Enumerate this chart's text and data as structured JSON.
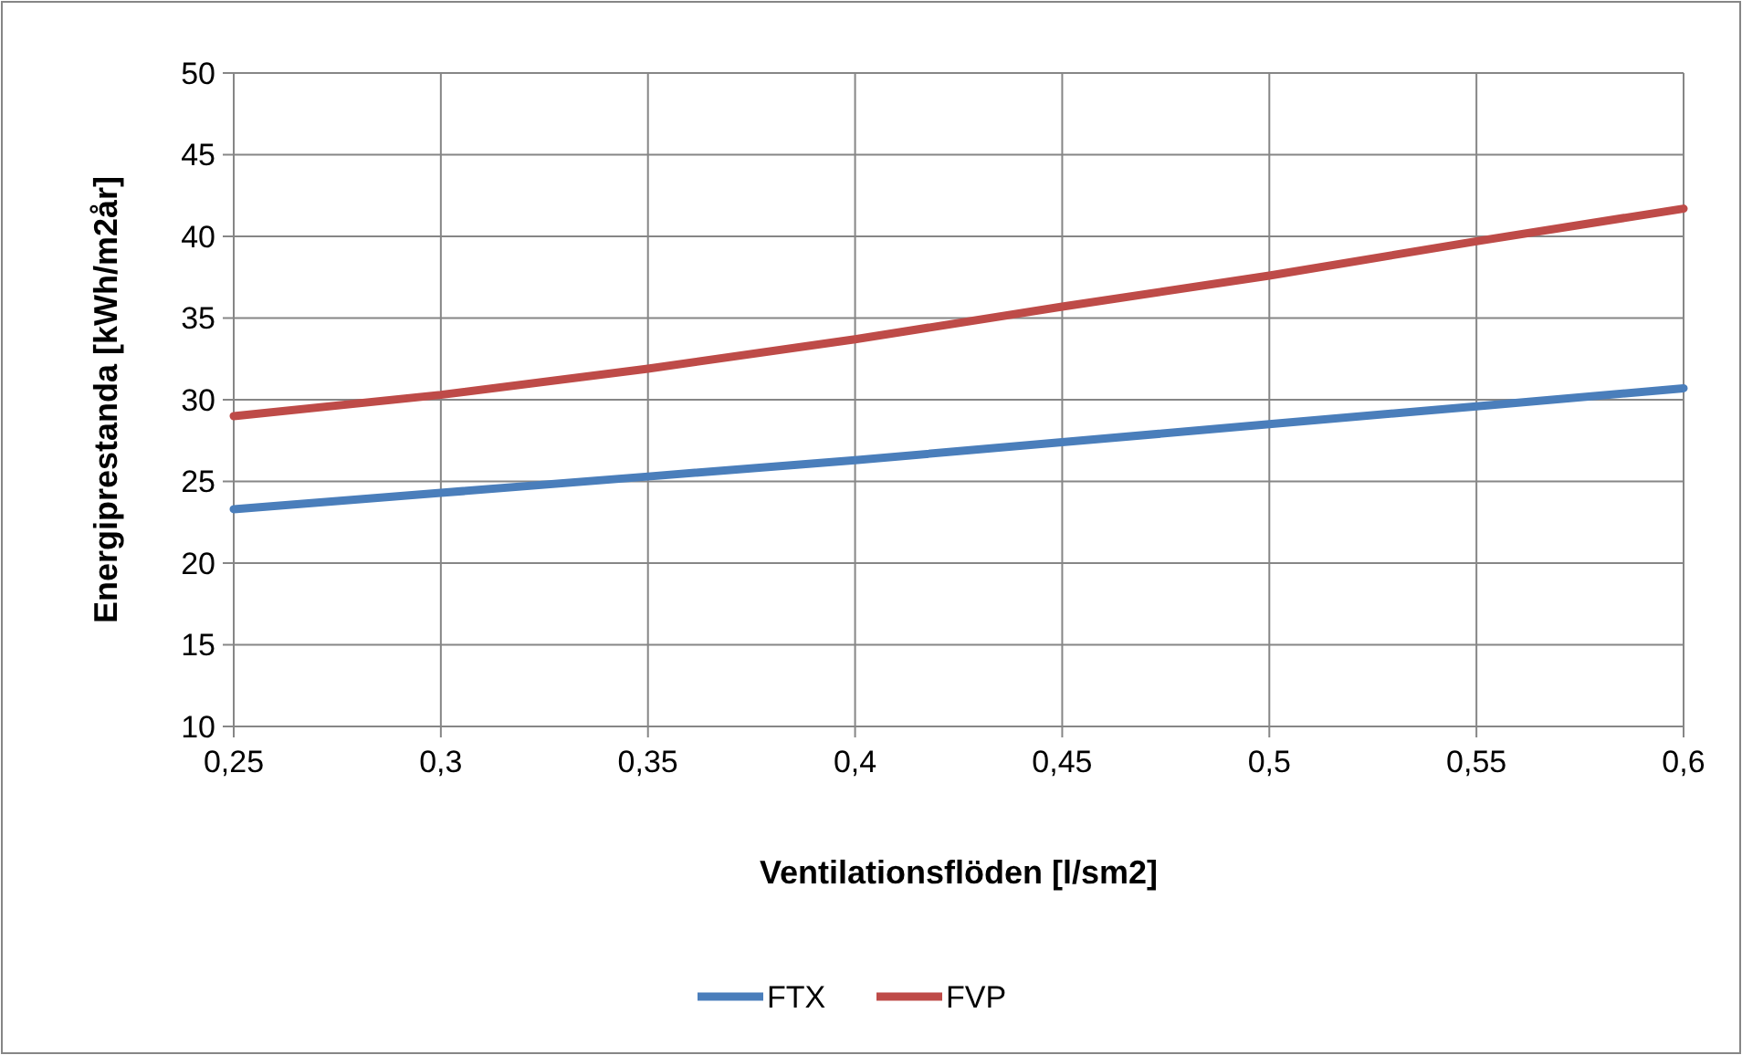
{
  "chart_data": {
    "type": "line",
    "xlabel": "Ventilationsflöden [l/sm2]",
    "ylabel": "Energiprestanda [kWh/m2år]",
    "x": [
      0.25,
      0.3,
      0.35,
      0.4,
      0.45,
      0.5,
      0.55,
      0.6
    ],
    "xlim": [
      0.25,
      0.6
    ],
    "xticks": [
      {
        "value": 0.25,
        "label": "0,25"
      },
      {
        "value": 0.3,
        "label": "0,3"
      },
      {
        "value": 0.35,
        "label": "0,35"
      },
      {
        "value": 0.4,
        "label": "0,4"
      },
      {
        "value": 0.45,
        "label": "0,45"
      },
      {
        "value": 0.5,
        "label": "0,5"
      },
      {
        "value": 0.55,
        "label": "0,55"
      },
      {
        "value": 0.6,
        "label": "0,6"
      }
    ],
    "ylim": [
      10,
      50
    ],
    "yticks": [
      10,
      15,
      20,
      25,
      30,
      35,
      40,
      45,
      50
    ],
    "grid": true,
    "legend": "bottom",
    "marker": "none",
    "line_style": "solid",
    "series": [
      {
        "name": "FTX",
        "color": "#4a7ebb",
        "values": [
          23.3,
          24.3,
          25.3,
          26.3,
          27.4,
          28.5,
          29.6,
          30.7
        ]
      },
      {
        "name": "FVP",
        "color": "#be4b48",
        "values": [
          29.0,
          30.3,
          31.9,
          33.7,
          35.7,
          37.6,
          39.7,
          41.7
        ]
      }
    ]
  }
}
